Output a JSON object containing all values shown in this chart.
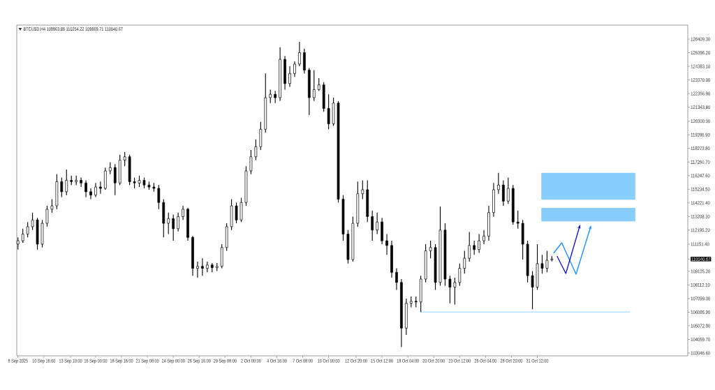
{
  "chart_data": {
    "type": "candlestick",
    "title": "BTCUSD,H4 109963.85 110254.22 109869.71 110040.67",
    "color": "#000000",
    "x": [
      "2025-09-08T00:00",
      "2025-09-08T12:00",
      "2025-09-09T00:00",
      "2025-09-09T12:00",
      "2025-09-10T00:00",
      "2025-09-10T12:00",
      "2025-09-11T00:00",
      "2025-09-11T12:00",
      "2025-09-12T00:00",
      "2025-09-12T12:00",
      "2025-09-13T00:00",
      "2025-09-13T12:00",
      "2025-09-14T00:00",
      "2025-09-14T12:00",
      "2025-09-15T00:00",
      "2025-09-15T12:00",
      "2025-09-16T00:00",
      "2025-09-16T12:00",
      "2025-09-17T00:00",
      "2025-09-17T12:00",
      "2025-09-18T00:00",
      "2025-09-18T12:00",
      "2025-09-19T00:00",
      "2025-09-19T12:00",
      "2025-09-20T00:00",
      "2025-09-20T12:00",
      "2025-09-21T00:00",
      "2025-09-21T12:00",
      "2025-09-22T00:00",
      "2025-09-22T12:00",
      "2025-09-23T00:00",
      "2025-09-23T12:00",
      "2025-09-24T00:00",
      "2025-09-24T12:00",
      "2025-09-25T00:00",
      "2025-09-25T12:00",
      "2025-09-26T00:00",
      "2025-09-26T12:00",
      "2025-09-27T00:00",
      "2025-09-27T12:00",
      "2025-09-28T00:00",
      "2025-09-28T12:00",
      "2025-09-29T00:00",
      "2025-09-29T12:00",
      "2025-09-30T00:00",
      "2025-09-30T12:00",
      "2025-10-01T00:00",
      "2025-10-01T12:00",
      "2025-10-02T00:00",
      "2025-10-02T12:00",
      "2025-10-03T00:00",
      "2025-10-03T12:00",
      "2025-10-04T00:00",
      "2025-10-04T12:00",
      "2025-10-05T00:00",
      "2025-10-05T12:00",
      "2025-10-06T00:00",
      "2025-10-06T12:00",
      "2025-10-07T00:00",
      "2025-10-07T12:00",
      "2025-10-08T00:00",
      "2025-10-08T12:00",
      "2025-10-09T00:00",
      "2025-10-09T12:00",
      "2025-10-10T00:00",
      "2025-10-10T12:00",
      "2025-10-11T00:00",
      "2025-10-11T12:00",
      "2025-10-12T00:00",
      "2025-10-12T12:00",
      "2025-10-13T00:00",
      "2025-10-13T12:00",
      "2025-10-14T00:00",
      "2025-10-14T12:00",
      "2025-10-15T00:00",
      "2025-10-15T12:00",
      "2025-10-16T00:00",
      "2025-10-16T12:00",
      "2025-10-17T00:00",
      "2025-10-17T12:00",
      "2025-10-18T00:00",
      "2025-10-18T12:00",
      "2025-10-19T00:00",
      "2025-10-19T12:00",
      "2025-10-20T00:00",
      "2025-10-20T12:00",
      "2025-10-21T00:00",
      "2025-10-21T12:00",
      "2025-10-22T00:00",
      "2025-10-22T12:00",
      "2025-10-23T00:00",
      "2025-10-23T12:00",
      "2025-10-24T00:00",
      "2025-10-24T12:00",
      "2025-10-25T00:00",
      "2025-10-25T12:00",
      "2025-10-26T00:00",
      "2025-10-26T12:00",
      "2025-10-27T00:00",
      "2025-10-27T12:00",
      "2025-10-28T00:00",
      "2025-10-28T12:00",
      "2025-10-29T00:00",
      "2025-10-29T12:00",
      "2025-10-30T00:00",
      "2025-10-30T12:00",
      "2025-10-31T00:00",
      "2025-10-31T12:00",
      "2025-11-01T00:00",
      "2025-11-01T12:00",
      "2025-11-02T00:00"
    ],
    "ohlc": [
      [
        111150,
        111650,
        110750,
        111400
      ],
      [
        111400,
        112300,
        111250,
        111900
      ],
      [
        111900,
        112800,
        111650,
        112450
      ],
      [
        112450,
        113500,
        112200,
        112950
      ],
      [
        112950,
        113100,
        110750,
        111150
      ],
      [
        111150,
        112950,
        110900,
        112700
      ],
      [
        112700,
        114000,
        112450,
        113750
      ],
      [
        113750,
        114500,
        113500,
        114000
      ],
      [
        114000,
        116350,
        113750,
        115800
      ],
      [
        115800,
        116100,
        114650,
        115050
      ],
      [
        115050,
        116700,
        114800,
        115900
      ],
      [
        115900,
        116250,
        115550,
        115800
      ],
      [
        115800,
        116250,
        115550,
        115900
      ],
      [
        115900,
        116100,
        115400,
        115700
      ],
      [
        115700,
        115900,
        114650,
        115050
      ],
      [
        115050,
        115300,
        114500,
        114800
      ],
      [
        114800,
        115700,
        114650,
        115400
      ],
      [
        115400,
        115800,
        114900,
        115300
      ],
      [
        115300,
        116850,
        115200,
        116600
      ],
      [
        116600,
        117250,
        116350,
        116850
      ],
      [
        116850,
        117100,
        114800,
        115700
      ],
      [
        115700,
        117800,
        115550,
        117400
      ],
      [
        117400,
        118000,
        116950,
        117650
      ],
      [
        117650,
        117800,
        115550,
        115800
      ],
      [
        115800,
        116100,
        115300,
        115700
      ],
      [
        115700,
        116250,
        115400,
        115900
      ],
      [
        115900,
        116100,
        115300,
        115550
      ],
      [
        115550,
        115800,
        115200,
        115400
      ],
      [
        115400,
        115700,
        115050,
        115300
      ],
      [
        115300,
        115550,
        113750,
        114250
      ],
      [
        114250,
        114500,
        111650,
        112700
      ],
      [
        112700,
        113500,
        111900,
        113050
      ],
      [
        113050,
        113350,
        111400,
        112300
      ],
      [
        112300,
        113500,
        112100,
        113200
      ],
      [
        113200,
        114000,
        112950,
        113750
      ],
      [
        113750,
        113850,
        111400,
        111650
      ],
      [
        111650,
        111750,
        108800,
        109350
      ],
      [
        109350,
        109850,
        108650,
        109500
      ],
      [
        109500,
        110100,
        108800,
        109350
      ],
      [
        109350,
        109850,
        109050,
        109600
      ],
      [
        109600,
        109750,
        109050,
        109400
      ],
      [
        109400,
        109750,
        109150,
        109500
      ],
      [
        109500,
        111150,
        109350,
        110900
      ],
      [
        110900,
        112700,
        110650,
        112450
      ],
      [
        112450,
        114500,
        112200,
        114000
      ],
      [
        114000,
        114250,
        112700,
        112950
      ],
      [
        112950,
        114600,
        112800,
        114250
      ],
      [
        114250,
        116950,
        114000,
        116600
      ],
      [
        116600,
        118150,
        116350,
        117650
      ],
      [
        117650,
        118950,
        117400,
        118400
      ],
      [
        118400,
        120250,
        118150,
        119700
      ],
      [
        119700,
        123850,
        119450,
        122050
      ],
      [
        122050,
        122650,
        121650,
        122300
      ],
      [
        122300,
        122550,
        121650,
        122050
      ],
      [
        122050,
        125800,
        121800,
        124900
      ],
      [
        124900,
        125150,
        122650,
        123100
      ],
      [
        123100,
        124400,
        122850,
        123850
      ],
      [
        123850,
        124750,
        123600,
        124550
      ],
      [
        124550,
        126200,
        124400,
        125400
      ],
      [
        125400,
        125700,
        123850,
        124100
      ],
      [
        124100,
        124250,
        120750,
        122050
      ],
      [
        122050,
        124100,
        121800,
        122650
      ],
      [
        122650,
        123500,
        122550,
        123000
      ],
      [
        123000,
        123200,
        121000,
        121250
      ],
      [
        121250,
        122300,
        119700,
        120100
      ],
      [
        120100,
        122050,
        119950,
        121650
      ],
      [
        121650,
        121800,
        114250,
        114500
      ],
      [
        114500,
        114800,
        111400,
        111900
      ],
      [
        111900,
        112200,
        109700,
        110000
      ],
      [
        110000,
        113200,
        109850,
        112700
      ],
      [
        112700,
        115800,
        112450,
        114900
      ],
      [
        114900,
        115900,
        114500,
        115200
      ],
      [
        115200,
        115900,
        112800,
        113200
      ],
      [
        113200,
        113650,
        111400,
        112200
      ],
      [
        112200,
        113500,
        111900,
        112800
      ],
      [
        112800,
        113100,
        111150,
        111400
      ],
      [
        111400,
        111900,
        110350,
        111050
      ],
      [
        111050,
        111400,
        108650,
        109050
      ],
      [
        109050,
        109350,
        107750,
        108300
      ],
      [
        108300,
        108550,
        103500,
        104900
      ],
      [
        104900,
        107100,
        104400,
        106750
      ],
      [
        106750,
        107250,
        106450,
        106900
      ],
      [
        106900,
        107250,
        106450,
        106850
      ],
      [
        106850,
        108800,
        106100,
        108550
      ],
      [
        108550,
        111150,
        108300,
        110650
      ],
      [
        110650,
        111400,
        110100,
        110900
      ],
      [
        110900,
        111150,
        107750,
        108300
      ],
      [
        108300,
        113950,
        108050,
        112200
      ],
      [
        112200,
        112700,
        108050,
        108550
      ],
      [
        108550,
        108800,
        106750,
        107950
      ],
      [
        107950,
        108650,
        106650,
        108300
      ],
      [
        108300,
        109700,
        108050,
        109350
      ],
      [
        109350,
        110650,
        108950,
        110100
      ],
      [
        110100,
        112050,
        109850,
        111050
      ],
      [
        111050,
        111400,
        110350,
        110750
      ],
      [
        110750,
        111900,
        110500,
        111400
      ],
      [
        111400,
        112200,
        111150,
        111750
      ],
      [
        111750,
        114000,
        111400,
        113500
      ],
      [
        113500,
        115700,
        113200,
        115200
      ],
      [
        115200,
        116450,
        114900,
        115550
      ],
      [
        115550,
        115900,
        114000,
        114350
      ],
      [
        114350,
        116100,
        114150,
        115300
      ],
      [
        115300,
        115550,
        112600,
        112800
      ],
      [
        112800,
        113650,
        112300,
        112700
      ],
      [
        112700,
        112950,
        110000,
        111150
      ],
      [
        111150,
        111400,
        108300,
        108800
      ],
      [
        108800,
        109150,
        106300,
        107950
      ],
      [
        107950,
        111150,
        107750,
        109700
      ],
      [
        109700,
        110350,
        108950,
        109350
      ],
      [
        109350,
        110650,
        109050,
        109950
      ],
      [
        109963.85,
        110254.22,
        109869.71,
        110040.67
      ]
    ],
    "xlim": [
      "2025-09-07T21:00",
      "2025-11-16T00:00"
    ],
    "ylim": [
      102840,
      127450
    ],
    "xticks": [
      {
        "value": "2025-09-08T00:00",
        "label": "8 Sep 2025"
      },
      {
        "value": "2025-09-10T16:00",
        "label": "10 Sep 16:00"
      },
      {
        "value": "2025-09-13T10:00",
        "label": "13 Sep 10:00"
      },
      {
        "value": "2025-09-16T00:00",
        "label": "16 Sep 00:00"
      },
      {
        "value": "2025-09-18T16:00",
        "label": "18 Sep 16:00"
      },
      {
        "value": "2025-09-21T08:00",
        "label": "21 Sep 08:00"
      },
      {
        "value": "2025-09-24T00:00",
        "label": "24 Sep 00:00"
      },
      {
        "value": "2025-09-26T16:00",
        "label": "26 Sep 16:00"
      },
      {
        "value": "2025-09-29T08:00",
        "label": "29 Sep 08:00"
      },
      {
        "value": "2025-10-02T00:00",
        "label": "2 Oct 00:00"
      },
      {
        "value": "2025-10-04T16:00",
        "label": "4 Oct 16:00"
      },
      {
        "value": "2025-10-07T08:00",
        "label": "7 Oct 08:00"
      },
      {
        "value": "2025-10-10T00:00",
        "label": "10 Oct 00:00"
      },
      {
        "value": "2025-10-12T20:00",
        "label": "12 Oct 20:00"
      },
      {
        "value": "2025-10-15T12:00",
        "label": "15 Oct 12:00"
      },
      {
        "value": "2025-10-18T04:00",
        "label": "18 Oct 04:00"
      },
      {
        "value": "2025-10-20T20:00",
        "label": "20 Oct 20:00"
      },
      {
        "value": "2025-10-23T12:00",
        "label": "23 Oct 12:00"
      },
      {
        "value": "2025-10-26T04:00",
        "label": "26 Oct 04:00"
      },
      {
        "value": "2025-10-28T20:00",
        "label": "28 Oct 20:00"
      },
      {
        "value": "2025-10-31T12:00",
        "label": "31 Oct 12:00"
      }
    ],
    "yticks": [
      {
        "value": 126409.3,
        "label": "126409.30"
      },
      {
        "value": 125396.2,
        "label": "125396.20"
      },
      {
        "value": 124383.1,
        "label": "124383.10"
      },
      {
        "value": 123370,
        "label": "123370.00"
      },
      {
        "value": 122356.9,
        "label": "122356.90"
      },
      {
        "value": 121343.8,
        "label": "121343.80"
      },
      {
        "value": 120300,
        "label": "120300.00"
      },
      {
        "value": 119286.9,
        "label": "119286.90"
      },
      {
        "value": 118273.8,
        "label": "118273.80"
      },
      {
        "value": 117260.7,
        "label": "117260.70"
      },
      {
        "value": 116247.6,
        "label": "116247.60"
      },
      {
        "value": 115234.5,
        "label": "115234.50"
      },
      {
        "value": 114221.4,
        "label": "114221.40"
      },
      {
        "value": 113208.3,
        "label": "113208.30"
      },
      {
        "value": 112195.2,
        "label": "112195.20"
      },
      {
        "value": 111151.4,
        "label": "111151.40"
      },
      {
        "value": 110040.67,
        "label": "110040.67"
      },
      {
        "value": 109125.2,
        "label": "109125.20"
      },
      {
        "value": 108112.1,
        "label": "108112.10"
      },
      {
        "value": 107099,
        "label": "107099.00"
      },
      {
        "value": 106085.9,
        "label": "106085.90"
      },
      {
        "value": 105072.8,
        "label": "105072.80"
      },
      {
        "value": 104059.7,
        "label": "104059.70"
      },
      {
        "value": 103046.6,
        "label": "103046.60"
      }
    ],
    "bands": [
      {
        "axis": "y",
        "from": 114450,
        "to": 116450,
        "color": "#87cefa"
      },
      {
        "axis": "y",
        "from": 112850,
        "to": 113850,
        "color": "#87cefa"
      }
    ],
    "ref_lines": [
      {
        "axis": "y",
        "value": 106100,
        "color": "#87cefa"
      }
    ]
  }
}
